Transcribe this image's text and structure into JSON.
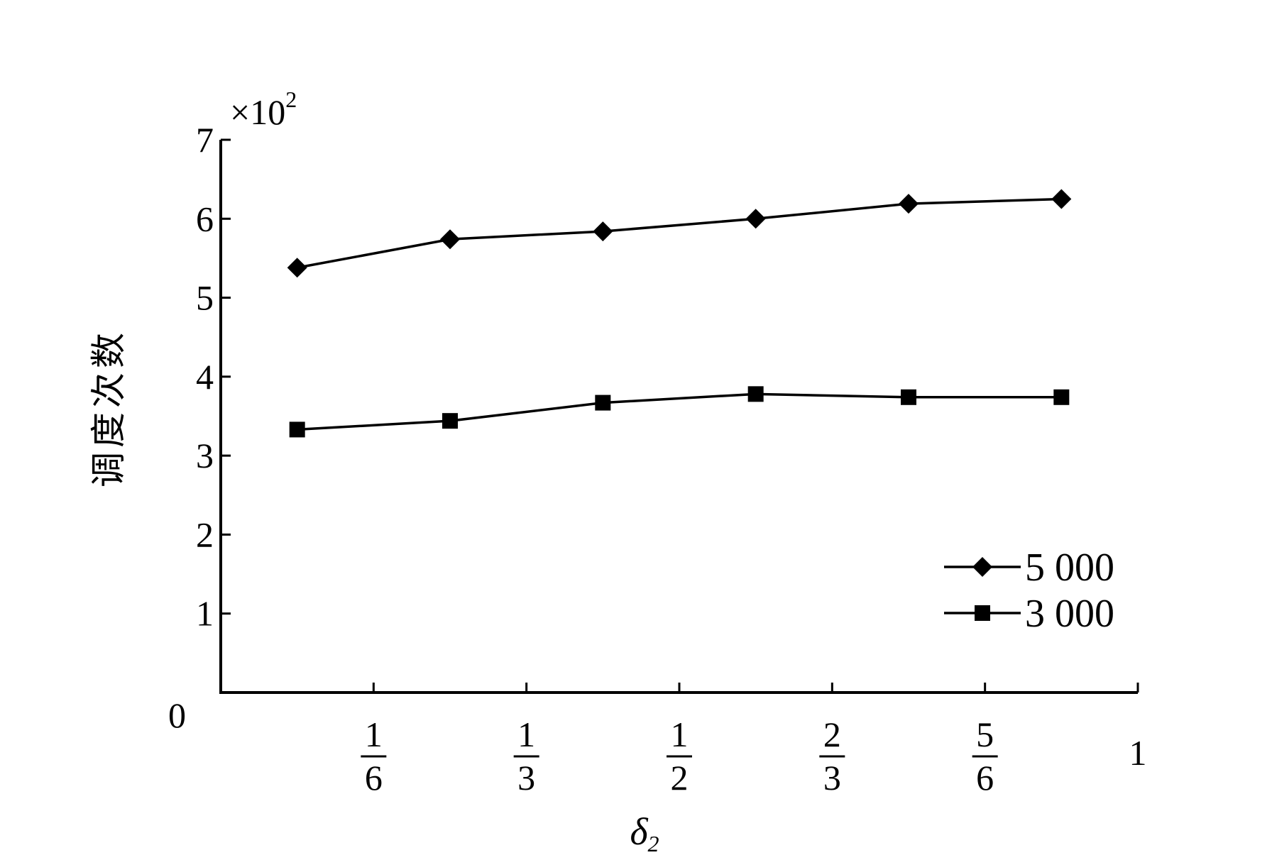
{
  "chart_data": {
    "type": "line",
    "ylabel": "调度次数",
    "xlabel": "δ",
    "xlabel_subscript": "2",
    "y_multiplier": "×10",
    "y_multiplier_exponent": "2",
    "ylim": [
      0,
      7
    ],
    "y_ticks": [
      "0",
      "1",
      "2",
      "3",
      "4",
      "5",
      "6",
      "7"
    ],
    "xlim": [
      0,
      1
    ],
    "x_ticks": [
      {
        "value": 0.1666667,
        "num": "1",
        "den": "6"
      },
      {
        "value": 0.3333333,
        "num": "1",
        "den": "3"
      },
      {
        "value": 0.5,
        "num": "1",
        "den": "2"
      },
      {
        "value": 0.6666667,
        "num": "2",
        "den": "3"
      },
      {
        "value": 0.8333333,
        "num": "5",
        "den": "6"
      }
    ],
    "x_end_label": "1",
    "x": [
      0.0833333,
      0.25,
      0.4166667,
      0.5833333,
      0.75,
      0.9166667
    ],
    "series": [
      {
        "name": "5 000",
        "marker": "diamond",
        "values": [
          5.38,
          5.74,
          5.84,
          6.0,
          6.19,
          6.25
        ]
      },
      {
        "name": "3 000",
        "marker": "square",
        "values": [
          3.33,
          3.44,
          3.67,
          3.78,
          3.74,
          3.74
        ]
      }
    ],
    "legend_position": "bottom-right",
    "grid": false
  }
}
